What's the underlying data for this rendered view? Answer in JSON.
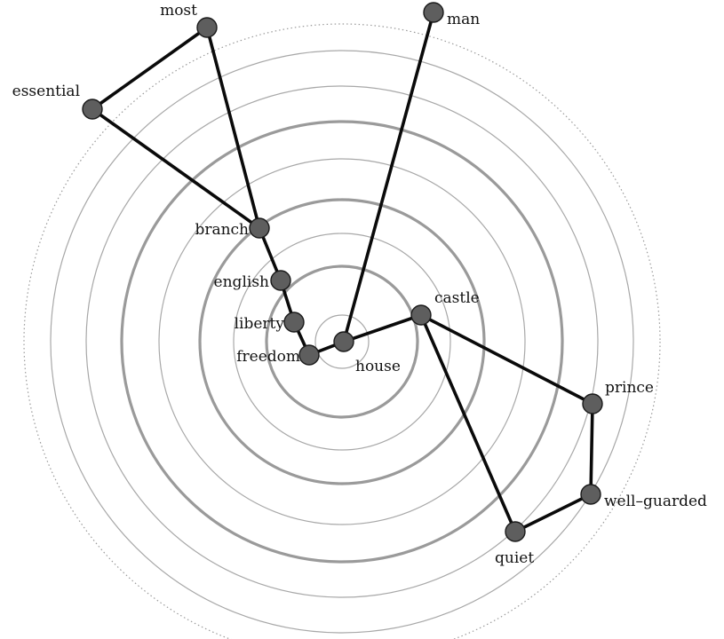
{
  "colors": {
    "background": "#ffffff",
    "ring_major": "#9a9a9a",
    "ring_minor": "#a8a8a8",
    "ring_outer_dotted": "#9a9a9a",
    "edge": "#0a0a0a",
    "node_fill": "#5e5e5e",
    "node_stroke": "#1a1a1a",
    "label": "#111111"
  },
  "center_node": "house",
  "nodes": [
    {
      "id": "house",
      "label": "house"
    },
    {
      "id": "freedom",
      "label": "freedom"
    },
    {
      "id": "liberty",
      "label": "liberty"
    },
    {
      "id": "english",
      "label": "english"
    },
    {
      "id": "branch",
      "label": "branch"
    },
    {
      "id": "essential",
      "label": "essential"
    },
    {
      "id": "most",
      "label": "most"
    },
    {
      "id": "man",
      "label": "man"
    },
    {
      "id": "castle",
      "label": "castle"
    },
    {
      "id": "prince",
      "label": "prince"
    },
    {
      "id": "well-guarded",
      "label": "well–guarded"
    },
    {
      "id": "quiet",
      "label": "quiet"
    }
  ],
  "edges": [
    [
      "house",
      "freedom"
    ],
    [
      "freedom",
      "liberty"
    ],
    [
      "liberty",
      "english"
    ],
    [
      "english",
      "branch"
    ],
    [
      "branch",
      "essential"
    ],
    [
      "essential",
      "most"
    ],
    [
      "most",
      "branch"
    ],
    [
      "house",
      "man"
    ],
    [
      "house",
      "castle"
    ],
    [
      "castle",
      "prince"
    ],
    [
      "prince",
      "well-guarded"
    ],
    [
      "well-guarded",
      "quiet"
    ],
    [
      "quiet",
      "castle"
    ]
  ]
}
